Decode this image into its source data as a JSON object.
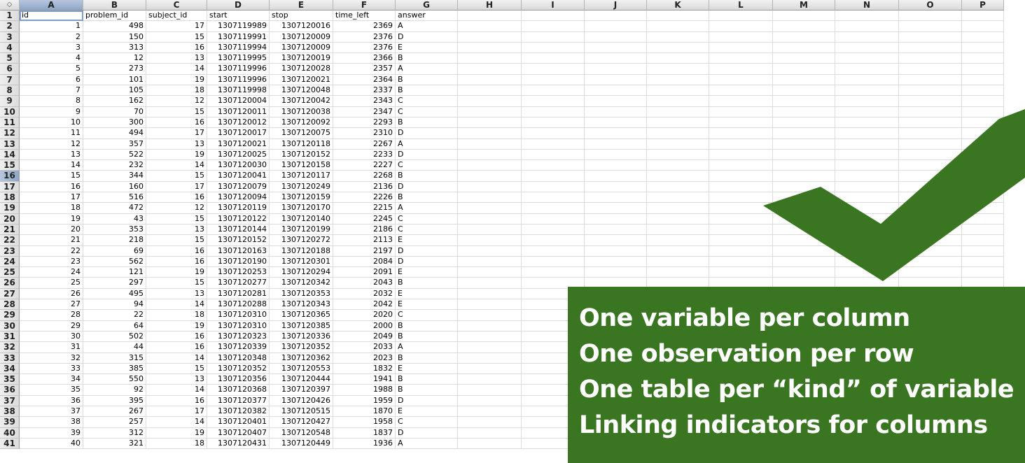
{
  "spreadsheet": {
    "corner_icon": "select-all-arrows-icon",
    "columns": [
      "A",
      "B",
      "C",
      "D",
      "E",
      "F",
      "G",
      "H",
      "I",
      "J",
      "K",
      "L",
      "M",
      "N",
      "O",
      "P"
    ],
    "header_row": [
      "id",
      "problem_id",
      "subject_id",
      "start",
      "stop",
      "time_left",
      "answer"
    ],
    "rows": [
      [
        1,
        498,
        17,
        1307119989,
        1307120016,
        2369,
        "A"
      ],
      [
        2,
        150,
        15,
        1307119991,
        1307120009,
        2376,
        "D"
      ],
      [
        3,
        313,
        16,
        1307119994,
        1307120009,
        2376,
        "E"
      ],
      [
        4,
        12,
        13,
        1307119995,
        1307120019,
        2366,
        "B"
      ],
      [
        5,
        273,
        14,
        1307119996,
        1307120028,
        2357,
        "A"
      ],
      [
        6,
        101,
        19,
        1307119996,
        1307120021,
        2364,
        "B"
      ],
      [
        7,
        105,
        18,
        1307119998,
        1307120048,
        2337,
        "B"
      ],
      [
        8,
        162,
        12,
        1307120004,
        1307120042,
        2343,
        "C"
      ],
      [
        9,
        70,
        15,
        1307120011,
        1307120038,
        2347,
        "C"
      ],
      [
        10,
        300,
        16,
        1307120012,
        1307120092,
        2293,
        "B"
      ],
      [
        11,
        494,
        17,
        1307120017,
        1307120075,
        2310,
        "D"
      ],
      [
        12,
        357,
        13,
        1307120021,
        1307120118,
        2267,
        "A"
      ],
      [
        13,
        522,
        19,
        1307120025,
        1307120152,
        2233,
        "D"
      ],
      [
        14,
        232,
        14,
        1307120030,
        1307120158,
        2227,
        "C"
      ],
      [
        15,
        344,
        15,
        1307120041,
        1307120117,
        2268,
        "B"
      ],
      [
        16,
        160,
        17,
        1307120079,
        1307120249,
        2136,
        "D"
      ],
      [
        17,
        516,
        16,
        1307120094,
        1307120159,
        2226,
        "B"
      ],
      [
        18,
        472,
        12,
        1307120119,
        1307120170,
        2215,
        "A"
      ],
      [
        19,
        43,
        15,
        1307120122,
        1307120140,
        2245,
        "C"
      ],
      [
        20,
        353,
        13,
        1307120144,
        1307120199,
        2186,
        "C"
      ],
      [
        21,
        218,
        15,
        1307120152,
        1307120272,
        2113,
        "E"
      ],
      [
        22,
        69,
        16,
        1307120163,
        1307120188,
        2197,
        "D"
      ],
      [
        23,
        562,
        16,
        1307120190,
        1307120301,
        2084,
        "D"
      ],
      [
        24,
        121,
        19,
        1307120253,
        1307120294,
        2091,
        "E"
      ],
      [
        25,
        297,
        15,
        1307120277,
        1307120342,
        2043,
        "B"
      ],
      [
        26,
        495,
        13,
        1307120281,
        1307120353,
        2032,
        "E"
      ],
      [
        27,
        94,
        14,
        1307120288,
        1307120343,
        2042,
        "E"
      ],
      [
        28,
        22,
        18,
        1307120310,
        1307120365,
        2020,
        "C"
      ],
      [
        29,
        64,
        19,
        1307120310,
        1307120385,
        2000,
        "B"
      ],
      [
        30,
        502,
        16,
        1307120323,
        1307120336,
        2049,
        "B"
      ],
      [
        31,
        44,
        16,
        1307120339,
        1307120352,
        2033,
        "A"
      ],
      [
        32,
        315,
        14,
        1307120348,
        1307120362,
        2023,
        "B"
      ],
      [
        33,
        385,
        15,
        1307120352,
        1307120553,
        1832,
        "E"
      ],
      [
        34,
        550,
        13,
        1307120356,
        1307120444,
        1941,
        "B"
      ],
      [
        35,
        92,
        14,
        1307120368,
        1307120397,
        1988,
        "B"
      ],
      [
        36,
        395,
        16,
        1307120377,
        1307120426,
        1959,
        "D"
      ],
      [
        37,
        267,
        17,
        1307120382,
        1307120515,
        1870,
        "E"
      ],
      [
        38,
        257,
        14,
        1307120401,
        1307120427,
        1958,
        "C"
      ],
      [
        39,
        312,
        19,
        1307120407,
        1307120548,
        1837,
        "D"
      ],
      [
        40,
        321,
        18,
        1307120431,
        1307120449,
        1936,
        "A"
      ]
    ],
    "selected_column": "A",
    "selected_row": 16
  },
  "overlay": {
    "check_icon": "checkmark-icon",
    "accent_color": "#3a7622",
    "principles": [
      "One variable per column",
      "One observation per row",
      "One table per “kind” of variable",
      "Linking indicators for columns"
    ]
  }
}
